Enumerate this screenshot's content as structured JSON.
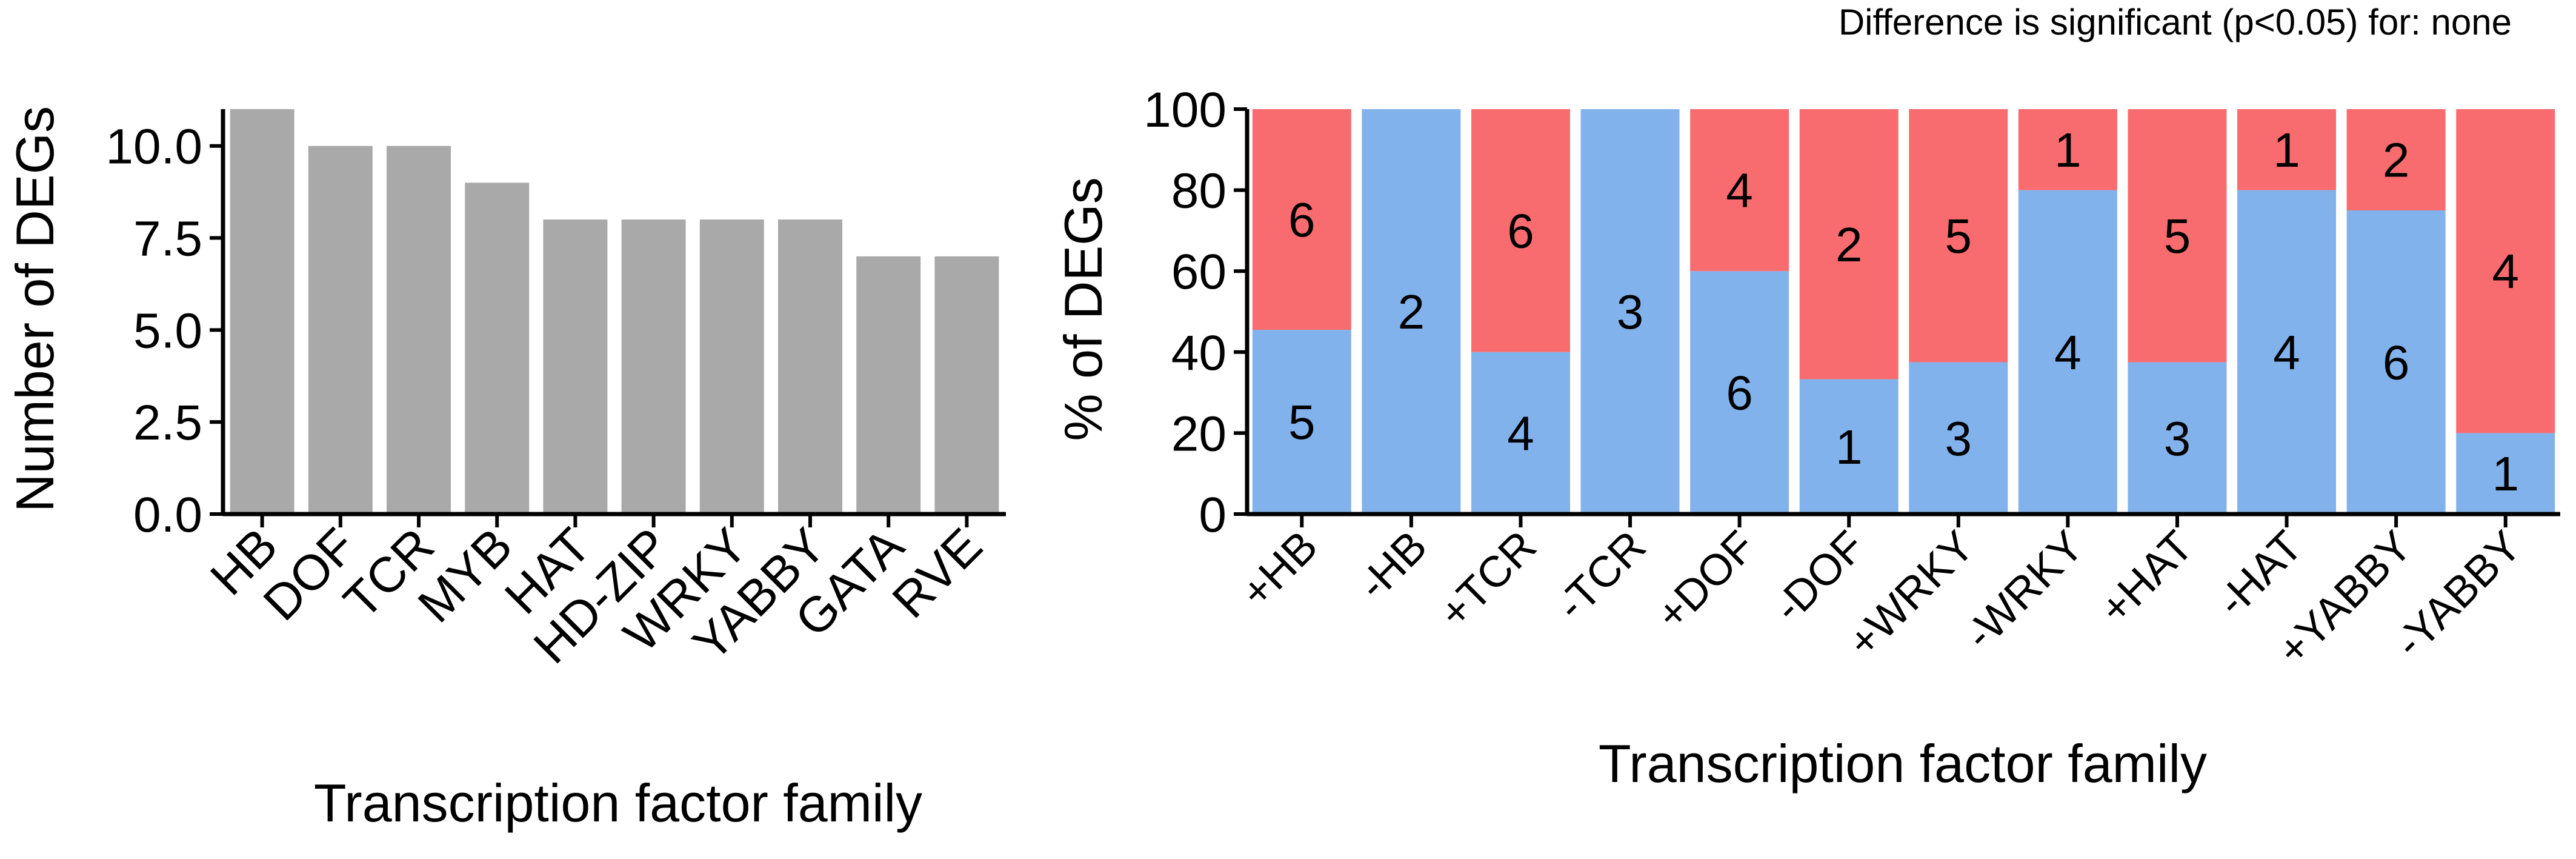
{
  "chart_data": [
    {
      "type": "bar",
      "categories": [
        "HB",
        "DOF",
        "TCR",
        "MYB",
        "HAT",
        "HD-ZIP",
        "WRKY",
        "YABBY",
        "GATA",
        "RVE"
      ],
      "values": [
        11,
        10,
        10,
        9,
        8,
        8,
        8,
        8,
        7,
        7
      ],
      "xlabel": "Transcription factor family",
      "ylabel": "Number of DEGs",
      "ylim": [
        0,
        11
      ],
      "yticks": [
        "0.0",
        "2.5",
        "5.0",
        "7.5",
        "10.0"
      ],
      "ytick_values": [
        0,
        2.5,
        5,
        7.5,
        10
      ],
      "color": "#a9a9a9",
      "grid": false
    },
    {
      "type": "bar",
      "stacked": true,
      "categories": [
        "+HB",
        "-HB",
        "+TCR",
        "-TCR",
        "+DOF",
        "-DOF",
        "+WRKY",
        "-WRKY",
        "+HAT",
        "-HAT",
        "+YABBY",
        "-YABBY"
      ],
      "series": [
        {
          "color": "#82b2ec",
          "percent": [
            45.5,
            100,
            40,
            100,
            60,
            33.3,
            37.5,
            80,
            37.5,
            80,
            75,
            20
          ],
          "counts": [
            "5",
            "2",
            "4",
            "3",
            "6",
            "1",
            "3",
            "4",
            "3",
            "4",
            "6",
            "1"
          ]
        },
        {
          "color": "#f86c6f",
          "percent": [
            54.5,
            0,
            60,
            0,
            40,
            66.7,
            62.5,
            20,
            62.5,
            20,
            25,
            80
          ],
          "counts": [
            "6",
            "",
            "6",
            "",
            "4",
            "2",
            "5",
            "1",
            "5",
            "1",
            "2",
            "4"
          ]
        }
      ],
      "xlabel": "Transcription factor family",
      "ylabel": "% of DEGs",
      "ylim": [
        0,
        100
      ],
      "yticks": [
        "0",
        "20",
        "40",
        "60",
        "80",
        "100"
      ],
      "ytick_values": [
        0,
        20,
        40,
        60,
        80,
        100
      ],
      "annotation": "Difference is significant (p<0.05) for: none",
      "grid": false
    }
  ]
}
